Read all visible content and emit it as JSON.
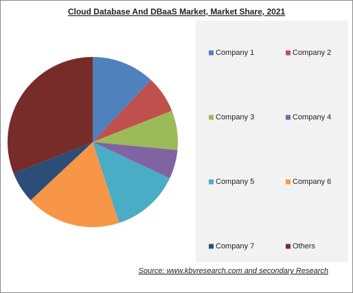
{
  "chart_data": {
    "type": "pie",
    "title": "Cloud Database And DBaaS Market, Market Share, 2021",
    "categories": [
      "Company 1",
      "Company 2",
      "Company 3",
      "Company 4",
      "Company 5",
      "Company 6",
      "Company 7",
      "Others"
    ],
    "values": [
      12,
      7,
      7.5,
      5.5,
      13,
      18,
      6,
      31
    ],
    "colors": [
      "#4f81bd",
      "#c0504d",
      "#9bbb59",
      "#8064a2",
      "#4bacc6",
      "#f79646",
      "#2c4d75",
      "#772c2a"
    ],
    "legend": "right",
    "source": "Source:  www.kbvresearch.com  and secondary Research"
  }
}
